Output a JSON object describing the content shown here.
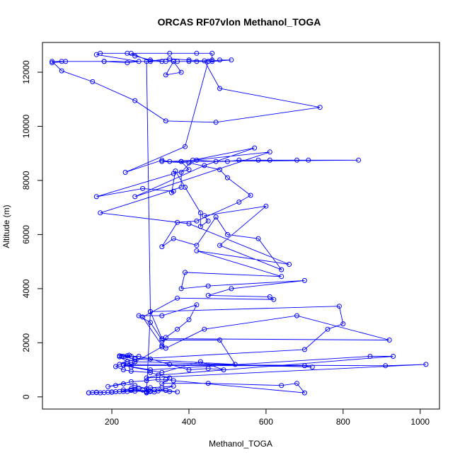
{
  "chart_data": {
    "type": "line",
    "title": "ORCAS RF07vlon Methanol_TOGA",
    "xlabel": "Methanol_TOGA",
    "ylabel": "Altitude (m)",
    "xlim": [
      20,
      1050
    ],
    "ylim": [
      -450,
      13100
    ],
    "x_ticks": [
      200,
      400,
      600,
      800,
      1000
    ],
    "y_ticks": [
      0,
      2000,
      4000,
      6000,
      8000,
      10000,
      12000
    ],
    "grid": false,
    "legend": "none",
    "color": "#0000ff",
    "series": [
      {
        "points": [
          [
            140,
            150
          ],
          [
            150,
            160
          ],
          [
            160,
            170
          ],
          [
            170,
            150
          ],
          [
            180,
            160
          ],
          [
            190,
            170
          ],
          [
            200,
            180
          ],
          [
            210,
            190
          ],
          [
            230,
            200
          ],
          [
            260,
            210
          ],
          [
            290,
            200
          ],
          [
            320,
            220
          ],
          [
            350,
            200
          ],
          [
            370,
            180
          ],
          [
            340,
            240
          ],
          [
            310,
            260
          ],
          [
            300,
            220
          ],
          [
            290,
            180
          ],
          [
            280,
            250
          ],
          [
            260,
            280
          ],
          [
            250,
            240
          ],
          [
            240,
            200
          ],
          [
            230,
            260
          ],
          [
            250,
            300
          ],
          [
            270,
            320
          ],
          [
            300,
            340
          ],
          [
            330,
            360
          ],
          [
            360,
            400
          ],
          [
            310,
            180
          ],
          [
            290,
            300
          ],
          [
            260,
            420
          ],
          [
            230,
            480
          ],
          [
            210,
            420
          ],
          [
            190,
            380
          ],
          [
            250,
            560
          ],
          [
            290,
            600
          ],
          [
            320,
            640
          ],
          [
            340,
            640
          ],
          [
            360,
            600
          ],
          [
            700,
            150
          ],
          [
            680,
            500
          ],
          [
            640,
            420
          ],
          [
            450,
            500
          ],
          [
            330,
            500
          ],
          [
            350,
            700
          ],
          [
            300,
            900
          ],
          [
            250,
            950
          ],
          [
            230,
            1000
          ],
          [
            210,
            1120
          ],
          [
            220,
            1200
          ],
          [
            240,
            1300
          ],
          [
            260,
            1400
          ],
          [
            230,
            1500
          ],
          [
            240,
            1520
          ],
          [
            250,
            1500
          ],
          [
            245,
            1540
          ],
          [
            220,
            1520
          ],
          [
            225,
            1500
          ],
          [
            270,
            1500
          ],
          [
            300,
            1400
          ],
          [
            350,
            1200
          ],
          [
            400,
            1000
          ],
          [
            450,
            1050
          ],
          [
            490,
            1000
          ],
          [
            430,
            1300
          ],
          [
            330,
            900
          ],
          [
            250,
            1100
          ],
          [
            230,
            1200
          ],
          [
            910,
            1150
          ],
          [
            1015,
            1200
          ],
          [
            290,
            700
          ],
          [
            320,
            800
          ],
          [
            930,
            1500
          ],
          [
            870,
            1500
          ],
          [
            300,
            1000
          ],
          [
            230,
            1160
          ],
          [
            700,
            1150
          ],
          [
            720,
            1100
          ],
          [
            260,
            1300
          ],
          [
            220,
            1480
          ],
          [
            250,
            1200
          ],
          [
            330,
            1850
          ],
          [
            340,
            2200
          ],
          [
            370,
            2500
          ],
          [
            400,
            2850
          ],
          [
            420,
            3400
          ],
          [
            330,
            3000
          ],
          [
            270,
            3000
          ],
          [
            300,
            2750
          ],
          [
            330,
            2100
          ],
          [
            480,
            2100
          ],
          [
            520,
            1200
          ],
          [
            260,
            1400
          ],
          [
            700,
            1750
          ],
          [
            760,
            2500
          ],
          [
            800,
            2700
          ],
          [
            790,
            3350
          ],
          [
            300,
            3150
          ],
          [
            290,
            12400
          ],
          [
            350,
            12500
          ],
          [
            400,
            12450
          ],
          [
            450,
            12400
          ],
          [
            480,
            12450
          ],
          [
            510,
            12450
          ],
          [
            460,
            12400
          ],
          [
            340,
            12400
          ],
          [
            300,
            12450
          ],
          [
            260,
            12600
          ],
          [
            240,
            12700
          ],
          [
            170,
            12700
          ],
          [
            160,
            12650
          ],
          [
            270,
            12400
          ],
          [
            240,
            12350
          ],
          [
            180,
            12400
          ],
          [
            70,
            12400
          ],
          [
            45,
            12350
          ],
          [
            80,
            12400
          ],
          [
            180,
            12400
          ],
          [
            330,
            12400
          ],
          [
            370,
            12400
          ],
          [
            420,
            12400
          ],
          [
            460,
            12450
          ],
          [
            460,
            12700
          ],
          [
            420,
            12700
          ],
          [
            350,
            12700
          ],
          [
            250,
            12700
          ],
          [
            300,
            12400
          ],
          [
            360,
            12400
          ],
          [
            380,
            12000
          ],
          [
            340,
            11900
          ],
          [
            360,
            12400
          ],
          [
            400,
            12400
          ],
          [
            440,
            12420
          ],
          [
            480,
            11400
          ],
          [
            740,
            10700
          ],
          [
            470,
            10150
          ],
          [
            340,
            10200
          ],
          [
            260,
            10950
          ],
          [
            150,
            11650
          ],
          [
            70,
            12050
          ],
          [
            45,
            12400
          ],
          [
            450,
            12400
          ],
          [
            390,
            9250
          ],
          [
            235,
            8300
          ],
          [
            330,
            8750
          ],
          [
            350,
            8700
          ],
          [
            420,
            8750
          ],
          [
            470,
            8700
          ],
          [
            500,
            8700
          ],
          [
            530,
            8750
          ],
          [
            580,
            8750
          ],
          [
            610,
            8750
          ],
          [
            680,
            8750
          ],
          [
            710,
            8750
          ],
          [
            840,
            8750
          ],
          [
            380,
            8700
          ],
          [
            330,
            8700
          ],
          [
            400,
            8650
          ],
          [
            480,
            8400
          ],
          [
            500,
            8100
          ],
          [
            560,
            7450
          ],
          [
            530,
            7200
          ],
          [
            420,
            6500
          ],
          [
            370,
            6450
          ],
          [
            330,
            5550
          ],
          [
            360,
            5850
          ],
          [
            420,
            5600
          ],
          [
            470,
            6650
          ],
          [
            500,
            6000
          ],
          [
            580,
            5850
          ],
          [
            640,
            4700
          ],
          [
            480,
            5600
          ],
          [
            600,
            7050
          ],
          [
            440,
            6700
          ],
          [
            450,
            6500
          ],
          [
            430,
            6300
          ],
          [
            430,
            6800
          ],
          [
            390,
            7750
          ],
          [
            365,
            8350
          ],
          [
            355,
            7550
          ],
          [
            360,
            7600
          ],
          [
            280,
            7700
          ],
          [
            160,
            7400
          ],
          [
            360,
            8250
          ],
          [
            400,
            8400
          ],
          [
            380,
            8700
          ],
          [
            610,
            9050
          ],
          [
            260,
            7400
          ],
          [
            440,
            8550
          ],
          [
            570,
            9200
          ],
          [
            410,
            8750
          ],
          [
            380,
            8300
          ],
          [
            380,
            7750
          ],
          [
            170,
            6800
          ],
          [
            400,
            6400
          ],
          [
            660,
            4900
          ],
          [
            420,
            5400
          ],
          [
            640,
            4450
          ],
          [
            390,
            4600
          ],
          [
            380,
            4000
          ],
          [
            450,
            4100
          ],
          [
            700,
            4300
          ],
          [
            510,
            4000
          ],
          [
            450,
            3750
          ],
          [
            610,
            3700
          ],
          [
            620,
            3600
          ],
          [
            370,
            3650
          ],
          [
            280,
            2950
          ],
          [
            330,
            1900
          ],
          [
            340,
            1800
          ],
          [
            440,
            2500
          ],
          [
            680,
            3000
          ],
          [
            920,
            2100
          ],
          [
            330,
            2150
          ],
          [
            300,
            3150
          ],
          [
            290,
            150
          ],
          [
            300,
            200
          ],
          [
            250,
            250
          ],
          [
            220,
            200
          ],
          [
            200,
            170
          ],
          [
            160,
            160
          ],
          [
            140,
            150
          ]
        ]
      }
    ]
  }
}
